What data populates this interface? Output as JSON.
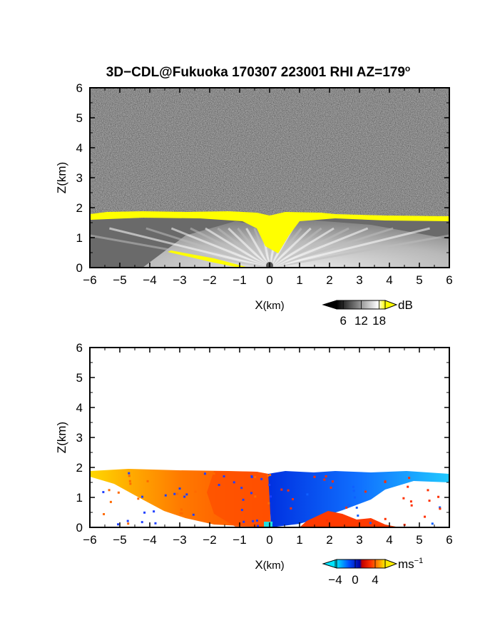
{
  "figure": {
    "title": "3D−CDL@Fukuoka 170307 223001 RHI AZ=179",
    "title_superscript": "o"
  },
  "chart_data": [
    {
      "type": "heatmap",
      "panel": "reflectivity",
      "xlabel": "X",
      "xlabel_unit": "(km)",
      "ylabel": "Z(km)",
      "xlim": [
        -6,
        6
      ],
      "ylim": [
        0,
        6
      ],
      "xticks": [
        "−6",
        "−5",
        "−4",
        "−3",
        "−2",
        "−1",
        "0",
        "1",
        "2",
        "3",
        "4",
        "5",
        "6"
      ],
      "yticks": [
        "0",
        "1",
        "2",
        "3",
        "4",
        "5",
        "6"
      ],
      "colorbar": {
        "unit": "dB",
        "ticks": [
          "6",
          "12",
          "18"
        ],
        "range": [
          0,
          20
        ],
        "colors": [
          "#000000",
          "#ffffff",
          "#ffff00"
        ]
      },
      "features": {
        "cloud_top_km": 1.7,
        "background": "noise"
      }
    },
    {
      "type": "heatmap",
      "panel": "doppler_velocity",
      "xlabel": "X",
      "xlabel_unit": "(km)",
      "ylabel": "Z(km)",
      "xlim": [
        -6,
        6
      ],
      "ylim": [
        0,
        6
      ],
      "xticks": [
        "−6",
        "−5",
        "−4",
        "−3",
        "−2",
        "−1",
        "0",
        "1",
        "2",
        "3",
        "4",
        "5",
        "6"
      ],
      "yticks": [
        "0",
        "1",
        "2",
        "3",
        "4",
        "5",
        "6"
      ],
      "colorbar": {
        "unit": "ms",
        "unit_superscript": "−1",
        "ticks": [
          "−4",
          "0",
          "4"
        ],
        "range": [
          -6,
          6
        ],
        "colors": [
          "#00e5ff",
          "#0050ff",
          "#0000a0",
          "#ff2000",
          "#ff9000",
          "#ffee00"
        ]
      },
      "features": {
        "left_of_zero": "positive (red/orange/yellow)",
        "right_of_zero": "negative (blue)",
        "echo_top_km": 1.8
      }
    }
  ]
}
